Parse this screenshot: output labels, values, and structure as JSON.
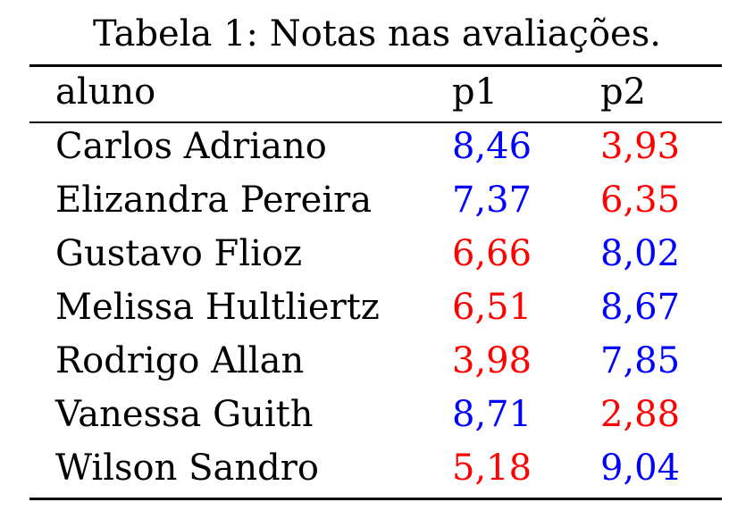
{
  "table": {
    "caption": "Tabela 1: Notas nas avaliações.",
    "headers": [
      "aluno",
      "p1",
      "p2"
    ],
    "rows": [
      {
        "aluno": "Carlos Adriano",
        "p1": "8,46",
        "p1_color": "#0000ff",
        "p2": "3,93",
        "p2_color": "#ff0000"
      },
      {
        "aluno": "Elizandra Pereira",
        "p1": "7,37",
        "p1_color": "#0000ff",
        "p2": "6,35",
        "p2_color": "#ff0000"
      },
      {
        "aluno": "Gustavo Flioz",
        "p1": "6,66",
        "p1_color": "#ff0000",
        "p2": "8,02",
        "p2_color": "#0000ff"
      },
      {
        "aluno": "Melissa Hultliertz",
        "p1": "6,51",
        "p1_color": "#ff0000",
        "p2": "8,67",
        "p2_color": "#0000ff"
      },
      {
        "aluno": "Rodrigo Allan",
        "p1": "3,98",
        "p1_color": "#ff0000",
        "p2": "7,85",
        "p2_color": "#0000ff"
      },
      {
        "aluno": "Vanessa Guith",
        "p1": "8,71",
        "p1_color": "#0000ff",
        "p2": "2,88",
        "p2_color": "#ff0000"
      },
      {
        "aluno": "Wilson Sandro",
        "p1": "5,18",
        "p1_color": "#ff0000",
        "p2": "9,04",
        "p2_color": "#0000ff"
      }
    ]
  }
}
